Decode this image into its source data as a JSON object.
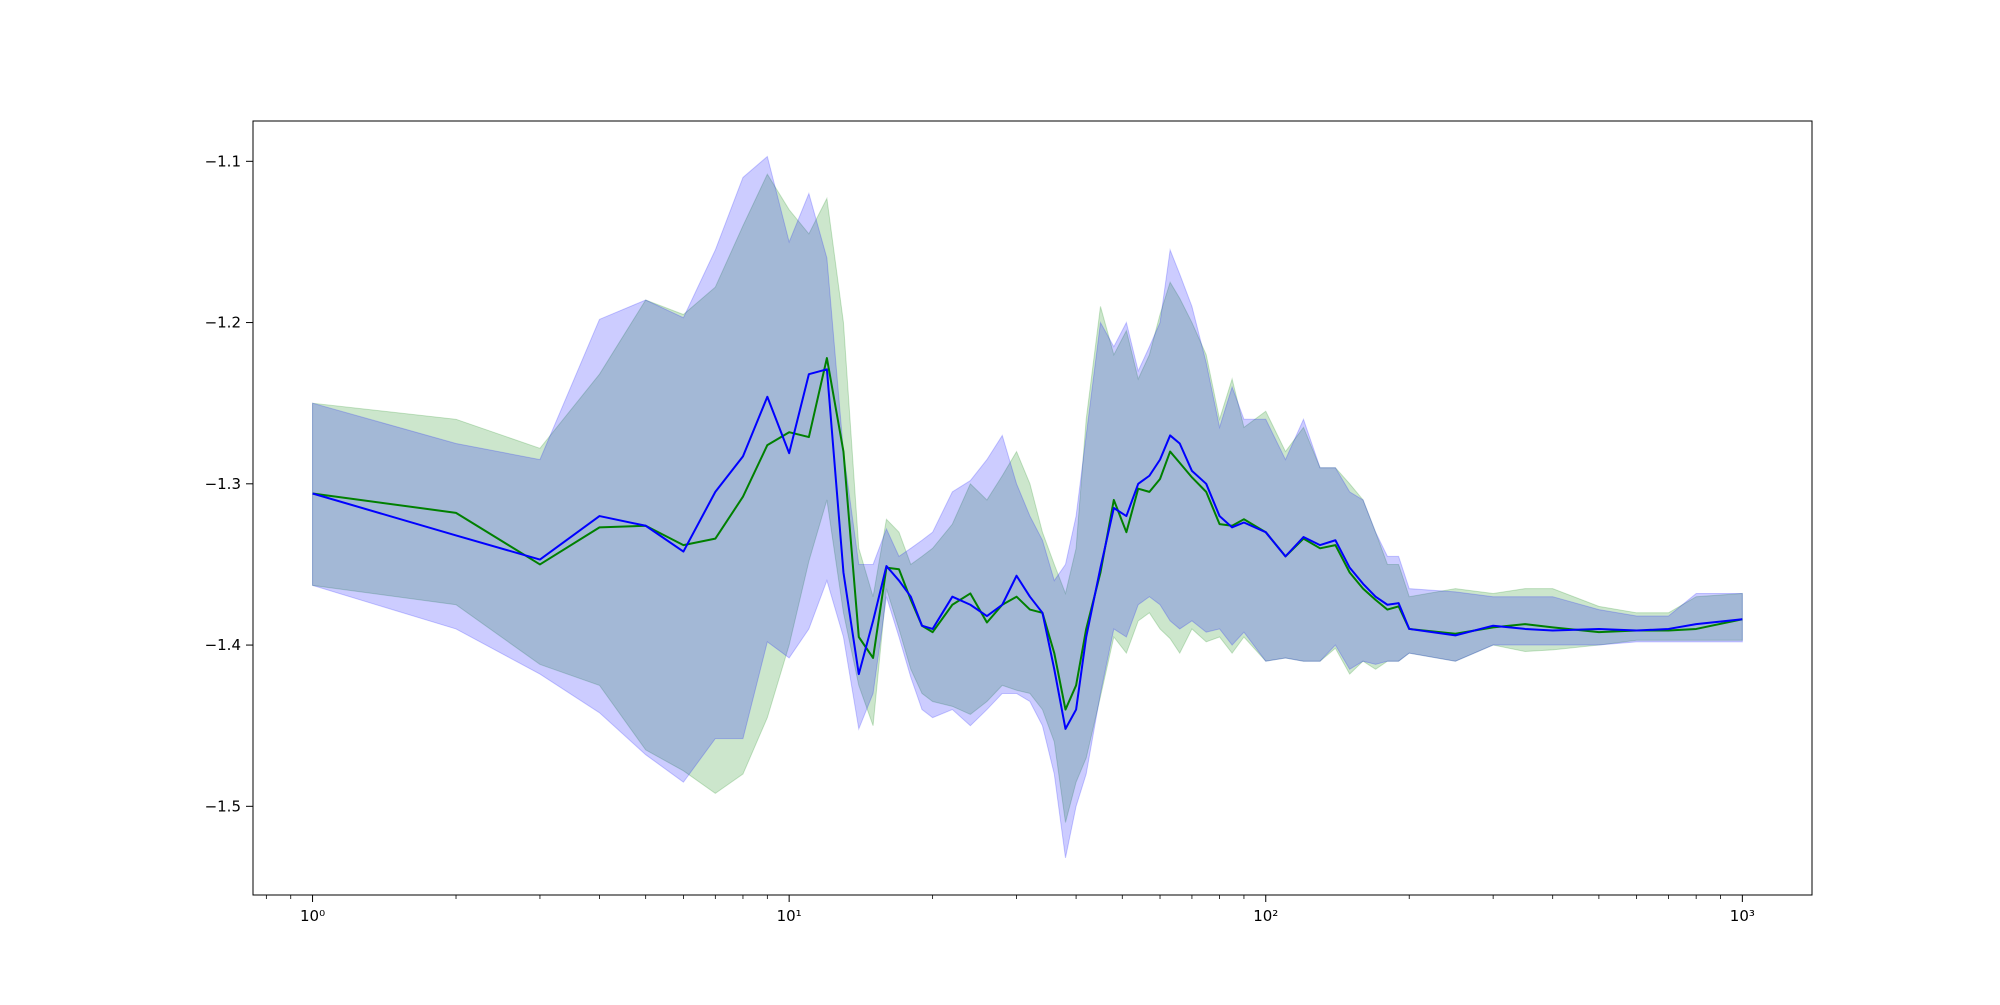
{
  "chart_data": {
    "type": "line",
    "xscale": "log",
    "xlim": [
      0.75,
      1400
    ],
    "ylim": [
      -1.555,
      -1.075
    ],
    "grid": false,
    "title": "",
    "xlabel": "",
    "ylabel": "",
    "x_ticks": [
      {
        "value": 1,
        "label": "10⁰"
      },
      {
        "value": 10,
        "label": "10¹"
      },
      {
        "value": 100,
        "label": "10²"
      },
      {
        "value": 1000,
        "label": "10³"
      }
    ],
    "y_ticks": [
      {
        "value": -1.1,
        "label": "−1.1"
      },
      {
        "value": -1.2,
        "label": "−1.2"
      },
      {
        "value": -1.3,
        "label": "−1.3"
      },
      {
        "value": -1.4,
        "label": "−1.4"
      },
      {
        "value": -1.5,
        "label": "−1.5"
      }
    ],
    "series": [
      {
        "color": "#008000",
        "band_color": "#008000",
        "band_opacity": 0.2,
        "x": [
          1,
          2,
          3,
          4,
          5,
          6,
          7,
          8,
          9,
          10,
          11,
          12,
          13,
          14,
          15,
          16,
          17,
          18,
          19,
          20,
          22,
          24,
          26,
          28,
          30,
          32,
          34,
          36,
          38,
          40,
          42,
          45,
          48,
          51,
          54,
          57,
          60,
          63,
          66,
          70,
          75,
          80,
          85,
          90,
          100,
          110,
          120,
          130,
          140,
          150,
          160,
          170,
          180,
          190,
          200,
          250,
          300,
          350,
          400,
          500,
          600,
          700,
          800,
          1000
        ],
        "y": [
          -1.306,
          -1.318,
          -1.35,
          -1.327,
          -1.326,
          -1.338,
          -1.334,
          -1.308,
          -1.276,
          -1.268,
          -1.271,
          -1.222,
          -1.28,
          -1.395,
          -1.408,
          -1.352,
          -1.353,
          -1.372,
          -1.388,
          -1.392,
          -1.375,
          -1.368,
          -1.386,
          -1.375,
          -1.37,
          -1.378,
          -1.38,
          -1.405,
          -1.44,
          -1.425,
          -1.39,
          -1.355,
          -1.31,
          -1.33,
          -1.303,
          -1.305,
          -1.297,
          -1.28,
          -1.287,
          -1.296,
          -1.305,
          -1.325,
          -1.326,
          -1.322,
          -1.33,
          -1.345,
          -1.334,
          -1.34,
          -1.338,
          -1.355,
          -1.365,
          -1.372,
          -1.378,
          -1.376,
          -1.39,
          -1.393,
          -1.389,
          -1.387,
          -1.389,
          -1.392,
          -1.391,
          -1.391,
          -1.39,
          -1.384
        ],
        "lower": [
          -1.363,
          -1.375,
          -1.412,
          -1.425,
          -1.465,
          -1.478,
          -1.492,
          -1.48,
          -1.445,
          -1.4,
          -1.348,
          -1.31,
          -1.38,
          -1.425,
          -1.45,
          -1.365,
          -1.39,
          -1.415,
          -1.43,
          -1.435,
          -1.438,
          -1.443,
          -1.435,
          -1.425,
          -1.428,
          -1.43,
          -1.44,
          -1.46,
          -1.51,
          -1.485,
          -1.47,
          -1.432,
          -1.395,
          -1.405,
          -1.385,
          -1.38,
          -1.39,
          -1.396,
          -1.405,
          -1.39,
          -1.398,
          -1.395,
          -1.405,
          -1.395,
          -1.41,
          -1.408,
          -1.41,
          -1.41,
          -1.402,
          -1.418,
          -1.41,
          -1.415,
          -1.41,
          -1.41,
          -1.405,
          -1.41,
          -1.4,
          -1.404,
          -1.403,
          -1.4,
          -1.397,
          -1.397,
          -1.397,
          -1.397
        ],
        "upper": [
          -1.25,
          -1.26,
          -1.278,
          -1.232,
          -1.186,
          -1.195,
          -1.178,
          -1.14,
          -1.108,
          -1.13,
          -1.145,
          -1.123,
          -1.2,
          -1.34,
          -1.37,
          -1.322,
          -1.33,
          -1.35,
          -1.345,
          -1.34,
          -1.325,
          -1.3,
          -1.31,
          -1.295,
          -1.28,
          -1.3,
          -1.33,
          -1.35,
          -1.368,
          -1.34,
          -1.26,
          -1.19,
          -1.22,
          -1.205,
          -1.235,
          -1.22,
          -1.195,
          -1.175,
          -1.185,
          -1.2,
          -1.22,
          -1.26,
          -1.235,
          -1.265,
          -1.255,
          -1.28,
          -1.265,
          -1.29,
          -1.29,
          -1.3,
          -1.31,
          -1.33,
          -1.35,
          -1.35,
          -1.37,
          -1.365,
          -1.368,
          -1.365,
          -1.365,
          -1.376,
          -1.38,
          -1.38,
          -1.37,
          -1.368
        ]
      },
      {
        "color": "#0000ff",
        "band_color": "#0000ff",
        "band_opacity": 0.2,
        "x": [
          1,
          2,
          3,
          4,
          5,
          6,
          7,
          8,
          9,
          10,
          11,
          12,
          13,
          14,
          15,
          16,
          17,
          18,
          19,
          20,
          22,
          24,
          26,
          28,
          30,
          32,
          34,
          36,
          38,
          40,
          42,
          45,
          48,
          51,
          54,
          57,
          60,
          63,
          66,
          70,
          75,
          80,
          85,
          90,
          100,
          110,
          120,
          130,
          140,
          150,
          160,
          170,
          180,
          190,
          200,
          250,
          300,
          350,
          400,
          500,
          600,
          700,
          800,
          1000
        ],
        "y": [
          -1.306,
          -1.332,
          -1.347,
          -1.32,
          -1.326,
          -1.342,
          -1.305,
          -1.283,
          -1.246,
          -1.281,
          -1.232,
          -1.229,
          -1.355,
          -1.418,
          -1.385,
          -1.351,
          -1.36,
          -1.37,
          -1.388,
          -1.39,
          -1.37,
          -1.375,
          -1.382,
          -1.375,
          -1.357,
          -1.37,
          -1.38,
          -1.415,
          -1.452,
          -1.44,
          -1.395,
          -1.352,
          -1.315,
          -1.32,
          -1.3,
          -1.295,
          -1.285,
          -1.27,
          -1.275,
          -1.292,
          -1.3,
          -1.32,
          -1.327,
          -1.324,
          -1.33,
          -1.345,
          -1.333,
          -1.338,
          -1.335,
          -1.352,
          -1.362,
          -1.37,
          -1.375,
          -1.374,
          -1.39,
          -1.394,
          -1.388,
          -1.39,
          -1.391,
          -1.39,
          -1.391,
          -1.39,
          -1.387,
          -1.384
        ],
        "lower": [
          -1.363,
          -1.39,
          -1.418,
          -1.442,
          -1.468,
          -1.485,
          -1.458,
          -1.458,
          -1.398,
          -1.408,
          -1.39,
          -1.36,
          -1.395,
          -1.452,
          -1.43,
          -1.37,
          -1.395,
          -1.42,
          -1.44,
          -1.445,
          -1.44,
          -1.45,
          -1.44,
          -1.43,
          -1.43,
          -1.435,
          -1.45,
          -1.48,
          -1.532,
          -1.5,
          -1.48,
          -1.43,
          -1.39,
          -1.395,
          -1.375,
          -1.37,
          -1.375,
          -1.385,
          -1.39,
          -1.385,
          -1.392,
          -1.39,
          -1.4,
          -1.392,
          -1.41,
          -1.408,
          -1.41,
          -1.41,
          -1.4,
          -1.415,
          -1.41,
          -1.412,
          -1.41,
          -1.41,
          -1.405,
          -1.41,
          -1.4,
          -1.4,
          -1.4,
          -1.4,
          -1.398,
          -1.398,
          -1.398,
          -1.398
        ],
        "upper": [
          -1.25,
          -1.275,
          -1.285,
          -1.198,
          -1.186,
          -1.197,
          -1.155,
          -1.11,
          -1.097,
          -1.15,
          -1.12,
          -1.16,
          -1.28,
          -1.35,
          -1.35,
          -1.328,
          -1.345,
          -1.34,
          -1.335,
          -1.33,
          -1.305,
          -1.298,
          -1.285,
          -1.27,
          -1.3,
          -1.32,
          -1.335,
          -1.36,
          -1.35,
          -1.32,
          -1.27,
          -1.2,
          -1.215,
          -1.2,
          -1.23,
          -1.215,
          -1.2,
          -1.155,
          -1.17,
          -1.19,
          -1.225,
          -1.265,
          -1.24,
          -1.26,
          -1.26,
          -1.285,
          -1.26,
          -1.29,
          -1.29,
          -1.305,
          -1.31,
          -1.33,
          -1.345,
          -1.345,
          -1.365,
          -1.367,
          -1.37,
          -1.37,
          -1.37,
          -1.378,
          -1.382,
          -1.382,
          -1.368,
          -1.368
        ]
      }
    ]
  }
}
